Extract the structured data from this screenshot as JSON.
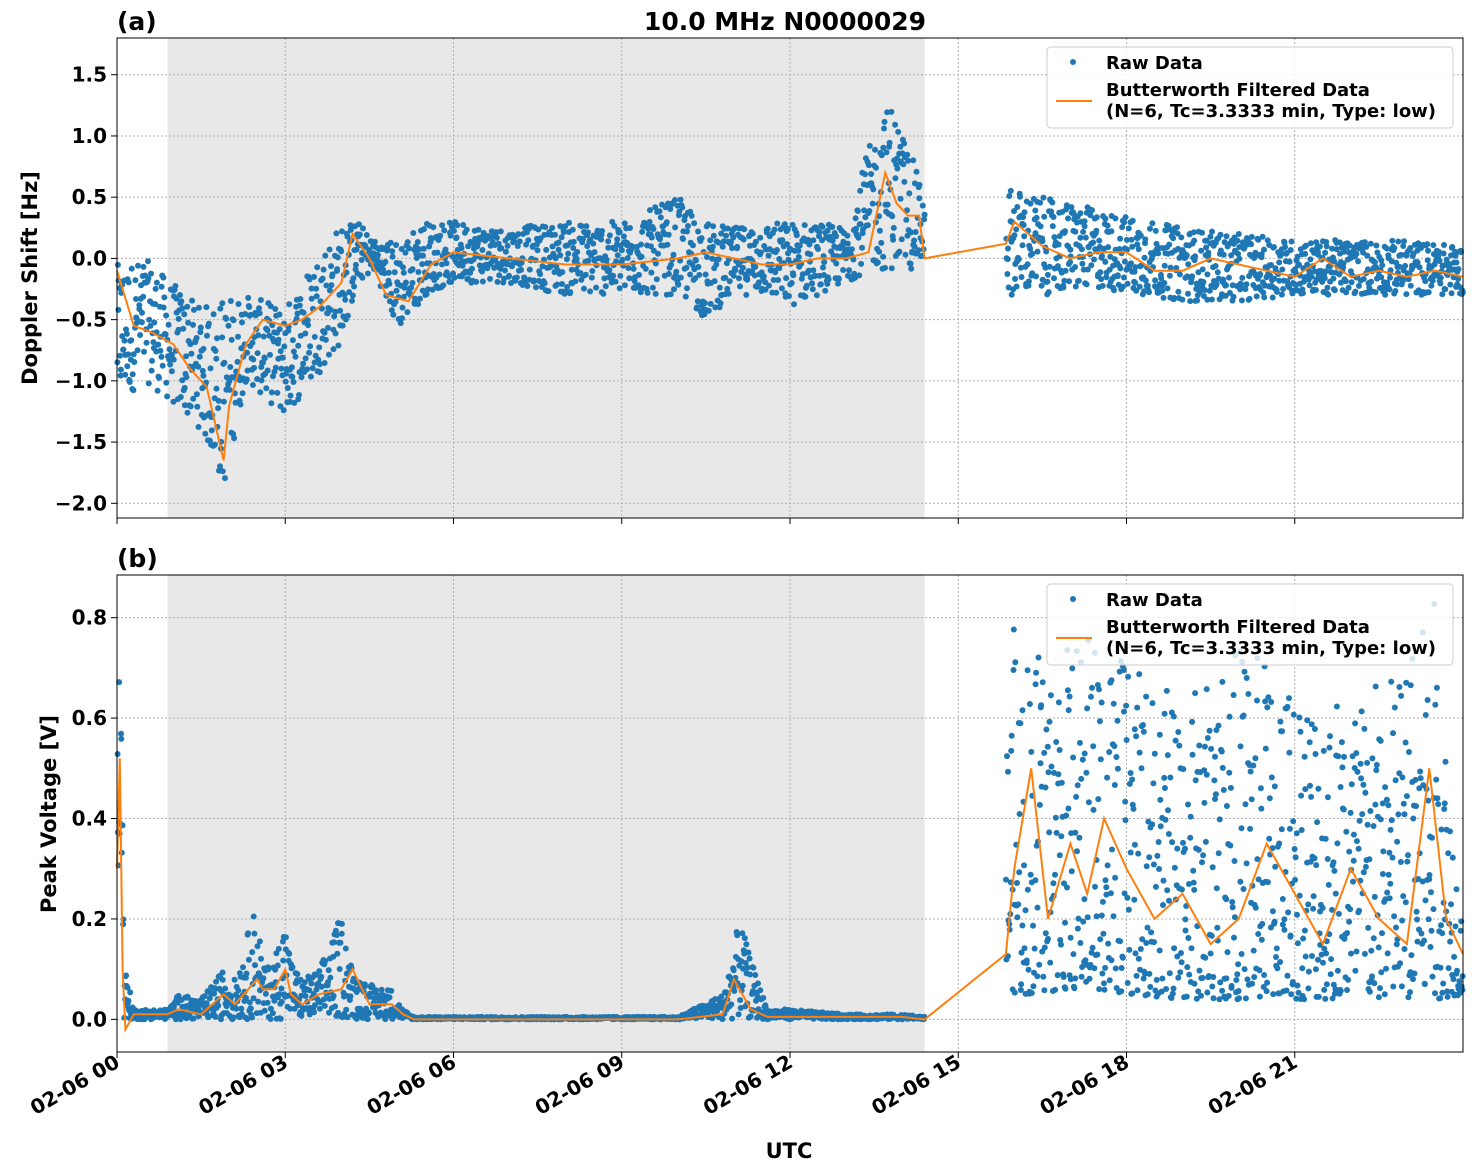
{
  "figure": {
    "title": "10.0 MHz N0000029",
    "xlabel": "UTC",
    "x_tick_labels": [
      "02-06 00",
      "02-06 03",
      "02-06 06",
      "02-06 09",
      "02-06 12",
      "02-06 15",
      "02-06 18",
      "02-06 21"
    ],
    "legend": {
      "raw": "Raw Data",
      "filtered_line1": "Butterworth Filtered Data",
      "filtered_line2": "(N=6, Tc=3.3333 min, Type: low)"
    },
    "colors": {
      "raw": "#1f77b4",
      "filtered": "#ff7f0e",
      "shade": "#e8e8e8",
      "grid": "#b0b0b0"
    }
  },
  "chart_data": [
    {
      "type": "scatter",
      "panel_label": "(a)",
      "ylabel": "Doppler Shift [Hz]",
      "xlim_hours": [
        0,
        24
      ],
      "ylim": [
        -2.12,
        1.8
      ],
      "y_ticks": [
        1.5,
        1.0,
        0.5,
        0.0,
        -0.5,
        -1.0,
        -1.5,
        -2.0
      ],
      "y_tick_labels": [
        "1.5",
        "1.0",
        "0.5",
        "0.0",
        "−0.5",
        "−1.0",
        "−1.5",
        "−2.0"
      ],
      "shaded_interval_hours": [
        0.9,
        14.4
      ],
      "data_gap_hours": [
        14.4,
        15.85
      ],
      "grid": true,
      "legend_position": "top-right",
      "series": [
        {
          "name": "Raw Data",
          "style": "points",
          "envelope": {
            "x": [
              0,
              0.5,
              1,
              1.5,
              1.9,
              2.3,
              3.0,
              3.5,
              4.0,
              4.3,
              4.6,
              5.0,
              5.5,
              6,
              7,
              8,
              9,
              10,
              10.5,
              11,
              11.5,
              12,
              12.5,
              13,
              13.4,
              13.8,
              14.2,
              14.4,
              15.85,
              16.5,
              17.5,
              19,
              20,
              21,
              22,
              23,
              24
            ],
            "low": [
              -1.2,
              -1.0,
              -1.2,
              -1.4,
              -1.9,
              -1.0,
              -1.3,
              -1.0,
              -0.7,
              -0.2,
              -0.1,
              -0.6,
              -0.3,
              -0.2,
              -0.2,
              -0.3,
              -0.3,
              -0.3,
              -0.5,
              -0.3,
              -0.3,
              -0.4,
              -0.3,
              -0.2,
              -0.1,
              -0.1,
              -0.1,
              -0.05,
              -0.3,
              -0.3,
              -0.25,
              -0.35,
              -0.35,
              -0.3,
              -0.3,
              -0.3,
              -0.3
            ],
            "high": [
              -0.05,
              0.0,
              -0.2,
              -0.4,
              -0.3,
              -0.3,
              -0.4,
              0.0,
              0.3,
              0.3,
              0.15,
              0.15,
              0.3,
              0.3,
              0.25,
              0.3,
              0.3,
              0.5,
              0.3,
              0.25,
              0.3,
              0.3,
              0.3,
              0.25,
              0.9,
              1.3,
              0.8,
              0.5,
              0.6,
              0.5,
              0.4,
              0.25,
              0.2,
              0.15,
              0.15,
              0.15,
              0.1
            ]
          }
        },
        {
          "name": "Butterworth Filtered Data",
          "style": "line",
          "x": [
            0,
            0.3,
            0.6,
            1.0,
            1.3,
            1.6,
            1.9,
            2.0,
            2.3,
            2.6,
            3.0,
            3.3,
            3.6,
            4.0,
            4.2,
            4.5,
            4.8,
            5.2,
            5.6,
            6,
            7,
            8,
            9,
            10,
            10.5,
            11,
            11.5,
            12,
            12.5,
            13,
            13.4,
            13.7,
            13.9,
            14.1,
            14.3,
            14.4,
            15.85,
            16.0,
            16.5,
            17.0,
            17.5,
            18,
            18.5,
            19,
            19.5,
            20,
            20.5,
            21,
            21.5,
            22,
            22.5,
            23,
            23.5,
            24
          ],
          "y": [
            -0.1,
            -0.55,
            -0.6,
            -0.7,
            -0.9,
            -1.05,
            -1.65,
            -1.2,
            -0.7,
            -0.5,
            -0.55,
            -0.5,
            -0.4,
            -0.2,
            0.2,
            0.0,
            -0.3,
            -0.35,
            -0.05,
            0.05,
            0.0,
            -0.05,
            -0.05,
            0.0,
            0.05,
            0.0,
            -0.05,
            -0.05,
            0.0,
            0.0,
            0.05,
            0.7,
            0.45,
            0.35,
            0.35,
            0.0,
            0.12,
            0.3,
            0.1,
            0.0,
            0.05,
            0.05,
            -0.1,
            -0.1,
            0.0,
            -0.05,
            -0.1,
            -0.15,
            0.0,
            -0.15,
            -0.1,
            -0.15,
            -0.1,
            -0.15
          ]
        }
      ]
    },
    {
      "type": "scatter",
      "panel_label": "(b)",
      "ylabel": "Peak Voltage [V]",
      "xlim_hours": [
        0,
        24
      ],
      "ylim": [
        -0.065,
        0.885
      ],
      "y_ticks": [
        0.8,
        0.6,
        0.4,
        0.2,
        0.0
      ],
      "y_tick_labels": [
        "0.8",
        "0.6",
        "0.4",
        "0.2",
        "0.0"
      ],
      "shaded_interval_hours": [
        0.9,
        14.4
      ],
      "data_gap_hours": [
        14.4,
        15.85
      ],
      "grid": true,
      "legend_position": "top-right",
      "series": [
        {
          "name": "Raw Data",
          "style": "points",
          "envelope": {
            "x": [
              0,
              0.05,
              0.1,
              0.15,
              0.3,
              0.9,
              1.1,
              1.5,
              1.9,
              2.1,
              2.5,
              2.6,
              2.8,
              3.0,
              3.1,
              3.3,
              3.6,
              4.0,
              4.2,
              4.5,
              4.9,
              5.1,
              5.3,
              6,
              8,
              10,
              10.8,
              11.1,
              11.3,
              11.6,
              12,
              13,
              14,
              14.4,
              15.85,
              16.0,
              16.3,
              17,
              17.5,
              18,
              19,
              20,
              21,
              22,
              23,
              23.5,
              24
            ],
            "low": [
              0.2,
              0.3,
              0.0,
              0.0,
              0.0,
              0.0,
              0.0,
              0.0,
              0.0,
              0.0,
              0.0,
              0.0,
              0.0,
              0.0,
              0.0,
              0.0,
              0.0,
              0.0,
              0.0,
              0.0,
              0.0,
              0.0,
              0.0,
              0.0,
              0.0,
              0.0,
              0.0,
              0.0,
              0.0,
              0.0,
              0.0,
              0.0,
              0.0,
              0.0,
              0.1,
              0.05,
              0.05,
              0.06,
              0.06,
              0.05,
              0.04,
              0.04,
              0.04,
              0.04,
              0.04,
              0.04,
              0.05
            ],
            "high": [
              0.5,
              0.82,
              0.55,
              0.1,
              0.02,
              0.02,
              0.05,
              0.04,
              0.1,
              0.08,
              0.24,
              0.1,
              0.12,
              0.21,
              0.12,
              0.08,
              0.1,
              0.21,
              0.1,
              0.07,
              0.06,
              0.02,
              0.005,
              0.005,
              0.005,
              0.005,
              0.05,
              0.2,
              0.12,
              0.02,
              0.02,
              0.01,
              0.01,
              0.005,
              0.55,
              0.8,
              0.75,
              0.75,
              0.8,
              0.7,
              0.65,
              0.75,
              0.7,
              0.65,
              0.72,
              0.84,
              0.2
            ]
          }
        },
        {
          "name": "Butterworth Filtered Data",
          "style": "line",
          "x": [
            0,
            0.05,
            0.1,
            0.15,
            0.3,
            0.9,
            1.1,
            1.5,
            1.9,
            2.1,
            2.5,
            2.6,
            2.8,
            3.0,
            3.1,
            3.3,
            3.6,
            4.0,
            4.2,
            4.5,
            4.9,
            5.1,
            5.3,
            6,
            8,
            10,
            10.8,
            11.0,
            11.1,
            11.3,
            11.6,
            12,
            13,
            14,
            14.4,
            15.85,
            16.0,
            16.3,
            16.6,
            17,
            17.3,
            17.6,
            18,
            18.5,
            19,
            19.5,
            20,
            20.5,
            21,
            21.5,
            22,
            22.5,
            23,
            23.4,
            23.7,
            24
          ],
          "y": [
            0.3,
            0.52,
            0.1,
            -0.02,
            0.01,
            0.01,
            0.02,
            0.01,
            0.05,
            0.03,
            0.08,
            0.06,
            0.06,
            0.1,
            0.05,
            0.03,
            0.05,
            0.06,
            0.1,
            0.03,
            0.03,
            0.01,
            0.0,
            0.0,
            0.0,
            0.0,
            0.01,
            0.08,
            0.06,
            0.02,
            0.005,
            0.005,
            0.005,
            0.005,
            0.0,
            0.13,
            0.3,
            0.5,
            0.2,
            0.35,
            0.25,
            0.4,
            0.3,
            0.2,
            0.25,
            0.15,
            0.2,
            0.35,
            0.25,
            0.15,
            0.3,
            0.2,
            0.15,
            0.5,
            0.2,
            0.13
          ]
        }
      ]
    }
  ]
}
